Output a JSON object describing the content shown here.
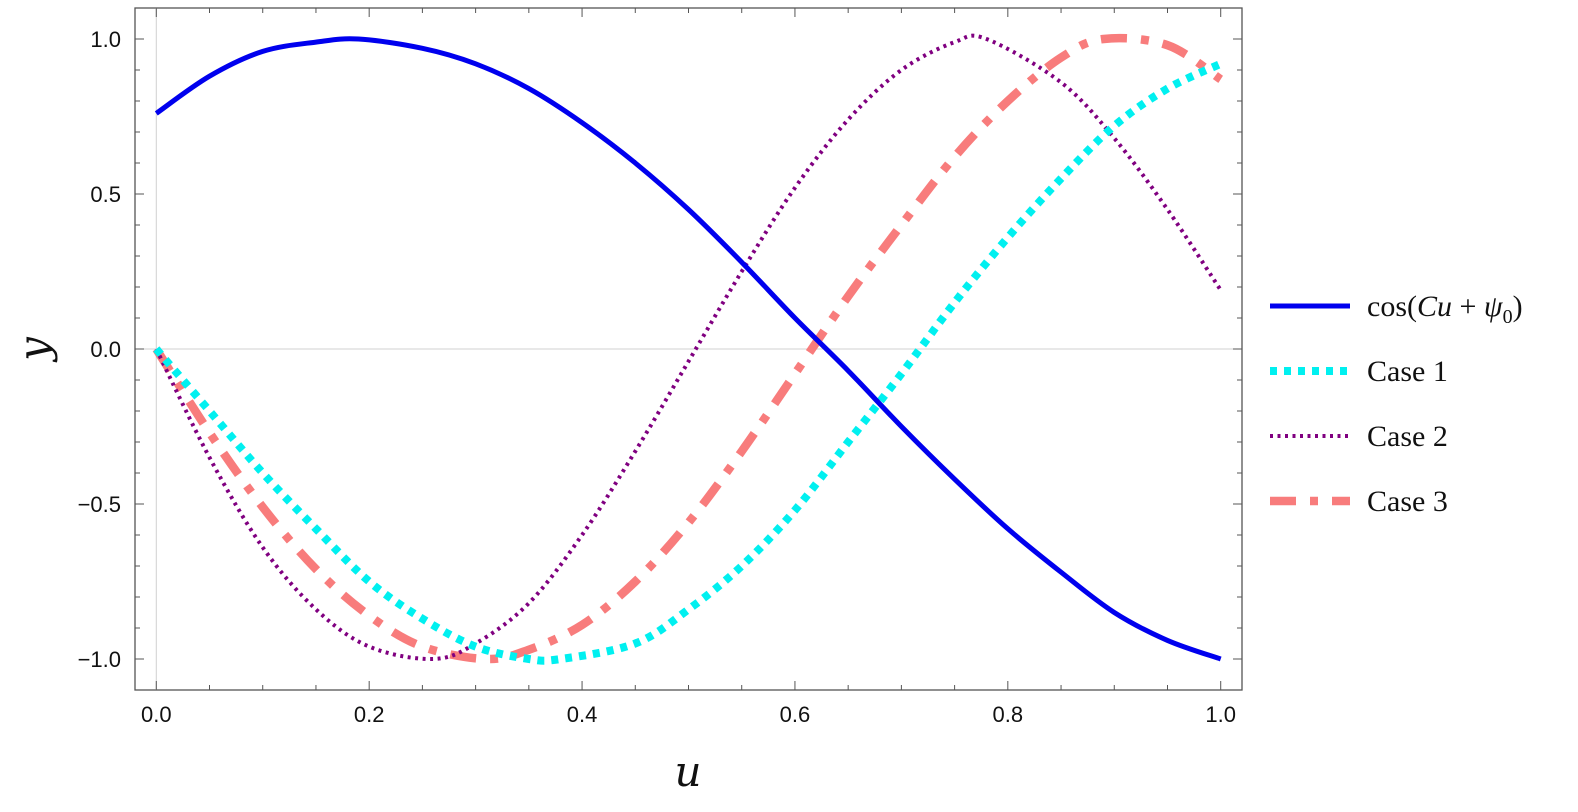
{
  "chart_data": {
    "type": "line",
    "title": "",
    "xlabel": "u",
    "ylabel": "y",
    "xlim": [
      -0.02,
      1.02
    ],
    "ylim": [
      -1.1,
      1.1
    ],
    "xticks": [
      0.0,
      0.2,
      0.4,
      0.6,
      0.8,
      1.0
    ],
    "xtick_labels": [
      "0.0",
      "0.2",
      "0.4",
      "0.6",
      "0.8",
      "1.0"
    ],
    "yticks": [
      -1.0,
      -0.5,
      0.0,
      0.5,
      1.0
    ],
    "ytick_labels": [
      "-1.0",
      "-0.5",
      "0.0",
      "0.5",
      "1.0"
    ],
    "legend_position": "right",
    "grid": false,
    "series": [
      {
        "name": "cos(Cu + ψ0)",
        "legend_parts": [
          "cos(",
          "C",
          "u",
          " + ",
          "ψ",
          "0",
          ")"
        ],
        "color": "#0000ee",
        "style": "solid",
        "x": [
          0,
          0.05,
          0.1,
          0.15,
          0.19,
          0.25,
          0.3,
          0.35,
          0.4,
          0.45,
          0.5,
          0.55,
          0.6,
          0.65,
          0.7,
          0.75,
          0.8,
          0.85,
          0.9,
          0.95,
          1.0
        ],
        "y": [
          0.76,
          0.88,
          0.96,
          0.99,
          1.0,
          0.97,
          0.92,
          0.84,
          0.73,
          0.6,
          0.45,
          0.28,
          0.1,
          -0.07,
          -0.25,
          -0.42,
          -0.58,
          -0.72,
          -0.85,
          -0.94,
          -1.0
        ]
      },
      {
        "name": "Case 1",
        "color": "#00f0f0",
        "style": "dotted-thick",
        "x": [
          0,
          0.05,
          0.1,
          0.15,
          0.2,
          0.25,
          0.3,
          0.35,
          0.38,
          0.45,
          0.5,
          0.55,
          0.6,
          0.65,
          0.7,
          0.75,
          0.8,
          0.85,
          0.9,
          0.95,
          1.0
        ],
        "y": [
          0,
          -0.2,
          -0.4,
          -0.58,
          -0.75,
          -0.87,
          -0.96,
          -1.0,
          -1.0,
          -0.95,
          -0.84,
          -0.7,
          -0.52,
          -0.3,
          -0.08,
          0.15,
          0.36,
          0.55,
          0.72,
          0.84,
          0.92
        ]
      },
      {
        "name": "Case 2",
        "color": "#800080",
        "style": "dotted",
        "x": [
          0,
          0.05,
          0.1,
          0.15,
          0.2,
          0.26,
          0.3,
          0.35,
          0.4,
          0.45,
          0.5,
          0.55,
          0.6,
          0.65,
          0.7,
          0.75,
          0.78,
          0.85,
          0.9,
          0.95,
          1.0
        ],
        "y": [
          0,
          -0.35,
          -0.64,
          -0.84,
          -0.96,
          -1.0,
          -0.95,
          -0.82,
          -0.6,
          -0.33,
          -0.04,
          0.25,
          0.52,
          0.74,
          0.9,
          0.99,
          1.0,
          0.86,
          0.68,
          0.45,
          0.19
        ]
      },
      {
        "name": "Case 3",
        "color": "#f87c7c",
        "style": "dashdot",
        "x": [
          0,
          0.05,
          0.1,
          0.15,
          0.2,
          0.25,
          0.31,
          0.35,
          0.4,
          0.45,
          0.5,
          0.55,
          0.6,
          0.65,
          0.7,
          0.75,
          0.8,
          0.85,
          0.89,
          0.95,
          1.0
        ],
        "y": [
          0,
          -0.27,
          -0.51,
          -0.71,
          -0.86,
          -0.96,
          -1.0,
          -0.97,
          -0.89,
          -0.75,
          -0.56,
          -0.33,
          -0.08,
          0.17,
          0.4,
          0.62,
          0.8,
          0.94,
          1.0,
          0.98,
          0.87
        ]
      }
    ]
  }
}
